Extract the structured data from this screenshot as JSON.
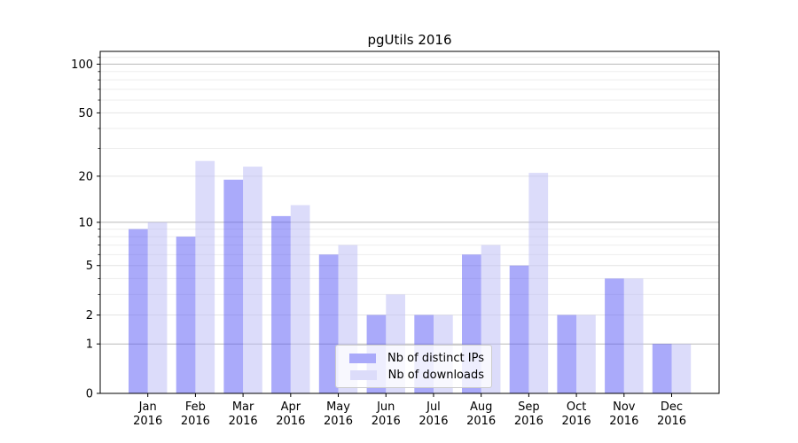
{
  "chart_data": {
    "type": "bar",
    "title": "pgUtils 2016",
    "categories": [
      "Jan",
      "Feb",
      "Mar",
      "Apr",
      "May",
      "Jun",
      "Jul",
      "Aug",
      "Sep",
      "Oct",
      "Nov",
      "Dec"
    ],
    "year_label": "2016",
    "series": [
      {
        "name": "Nb of distinct IPs",
        "color": "#aaaafa",
        "values": [
          9,
          8,
          19,
          11,
          6,
          2,
          2,
          6,
          5,
          2,
          4,
          1
        ]
      },
      {
        "name": "Nb of downloads",
        "color": "#dcdcfa",
        "values": [
          10,
          25,
          23,
          13,
          7,
          3,
          2,
          7,
          21,
          2,
          4,
          1
        ]
      }
    ],
    "xlabel": "",
    "ylabel": "",
    "yscale": "log1p",
    "ylim": [
      0,
      119
    ],
    "yticks": [
      0,
      1,
      2,
      5,
      10,
      20,
      50,
      100
    ],
    "emphasized_yticks": [
      1,
      10,
      100
    ],
    "minor_yticks": [
      3,
      4,
      6,
      7,
      8,
      9,
      30,
      40,
      60,
      70,
      80,
      90,
      110
    ],
    "grid": true,
    "legend_position": "lower-center-inside",
    "colors": {
      "grid_major": "#b9b9b9",
      "grid_mid": "#e4e4e4",
      "grid_minor": "#ededed",
      "axis": "#000000",
      "text": "#000000",
      "background": "#ffffff"
    },
    "bar_opacity": 0.5
  }
}
